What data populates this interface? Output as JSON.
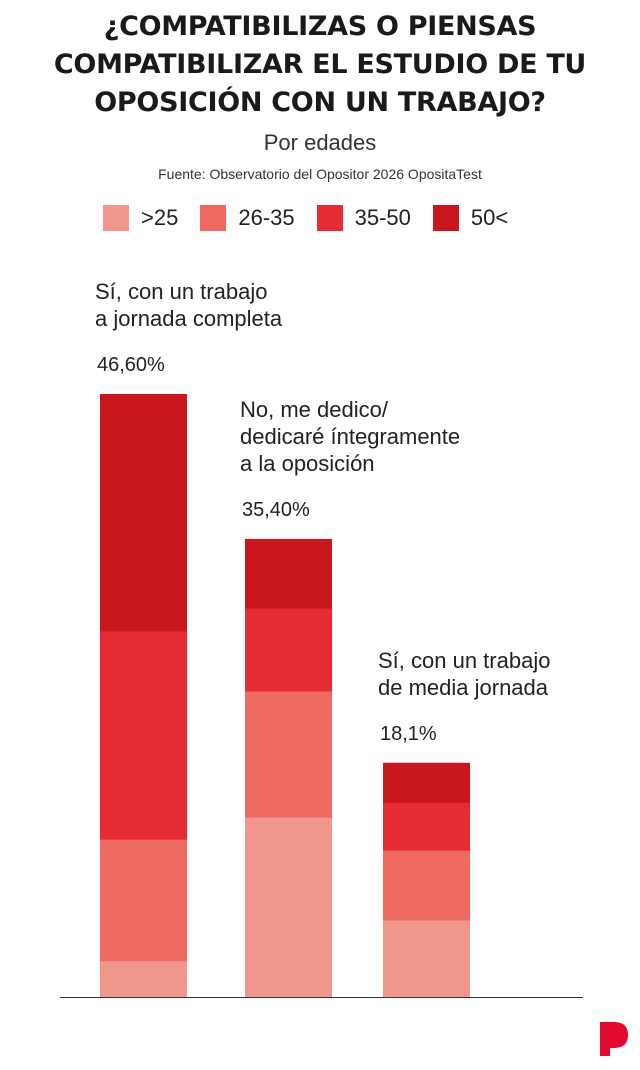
{
  "title_lines": [
    "¿COMPATIBILIZAS O PIENSAS",
    "COMPATIBILIZAR EL ESTUDIO DE TU",
    "OPOSICIÓN CON UN TRABAJO?"
  ],
  "subtitle": "Por edades",
  "source": "Fuente: Observatorio del Opositor 2026 OpositaTest",
  "logo": {
    "text": "P",
    "color": "#e30a2f"
  },
  "chart_data": {
    "type": "bar",
    "stacked": true,
    "title": "¿COMPATIBILIZAS O PIENSAS COMPATIBILIZAR EL ESTUDIO DE TU OPOSICIÓN CON UN TRABAJO?",
    "subtitle": "Por edades",
    "legend_position": "top",
    "grid": false,
    "ylim": [
      0,
      50
    ],
    "categories": [
      {
        "lines": [
          "Sí, con un trabajo",
          "a jornada completa"
        ],
        "total_label": "46,60%",
        "total": 46.6
      },
      {
        "lines": [
          "No, me dedico/",
          "dedicaré íntegramente",
          "a la oposición"
        ],
        "total_label": "35,40%",
        "total": 35.4
      },
      {
        "lines": [
          "Sí, con un trabajo",
          "de media jornada"
        ],
        "total_label": "18,1%",
        "total": 18.1
      }
    ],
    "series": [
      {
        "name": ">25",
        "color": "#f1968c",
        "values": [
          2.8,
          13.9,
          5.95
        ]
      },
      {
        "name": "26-35",
        "color": "#ee6a60",
        "values": [
          9.4,
          9.75,
          5.4
        ]
      },
      {
        "name": "35-50",
        "color": "#e52b33",
        "values": [
          16.1,
          6.4,
          3.7
        ]
      },
      {
        "name": "50<",
        "color": "#c8171e",
        "values": [
          18.3,
          5.35,
          3.05
        ]
      }
    ]
  }
}
